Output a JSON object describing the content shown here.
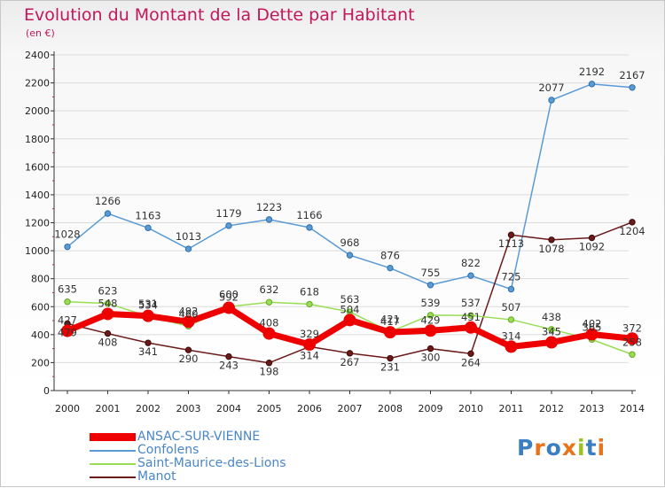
{
  "header": {
    "title": "Evolution du Montant de la Dette par Habitant",
    "subtitle": "(en €)"
  },
  "logo": {
    "text": "Proxiti",
    "colors": [
      "#3a7fc1",
      "#e8731a",
      "#3a7fc1",
      "#e8731a",
      "#9ac31c",
      "#3a7fc1",
      "#e8731a"
    ]
  },
  "chart_data": {
    "type": "line",
    "title": "Evolution du Montant de la Dette par Habitant",
    "subtitle": "(en €)",
    "xlabel": "",
    "ylabel": "",
    "ylim": [
      0,
      2400
    ],
    "yticks": [
      0,
      200,
      400,
      600,
      800,
      1000,
      1200,
      1400,
      1600,
      1800,
      2000,
      2200,
      2400
    ],
    "categories": [
      "2000",
      "2001",
      "2002",
      "2003",
      "2004",
      "2005",
      "2006",
      "2007",
      "2008",
      "2009",
      "2010",
      "2011",
      "2012",
      "2013",
      "2014"
    ],
    "legend_position": "bottom-left",
    "series": [
      {
        "name": "ANSAC-SUR-VIENNE",
        "color": "#ee0000",
        "values": [
          427,
          548,
          534,
          492,
          592,
          408,
          329,
          504,
          417,
          429,
          451,
          314,
          345,
          402,
          372
        ]
      },
      {
        "name": "Confolens",
        "color": "#5b9bd5",
        "values": [
          1028,
          1266,
          1163,
          1013,
          1179,
          1223,
          1166,
          968,
          876,
          755,
          822,
          725,
          2077,
          2192,
          2167
        ]
      },
      {
        "name": "Saint-Maurice-des-Lions",
        "color": "#99dd55",
        "values": [
          635,
          623,
          531,
          460,
          600,
          632,
          618,
          563,
          421,
          539,
          537,
          507,
          438,
          365,
          258
        ]
      },
      {
        "name": "Manot",
        "color": "#6b1a1a",
        "values": [
          479,
          408,
          341,
          290,
          243,
          198,
          314,
          267,
          231,
          300,
          264,
          1113,
          1078,
          1092,
          1204
        ]
      }
    ],
    "data_labels": {
      "ANSAC-SUR-VIENNE": [
        "427",
        "548",
        "534",
        "492",
        "592",
        "408",
        "329",
        "504",
        "417",
        "429",
        "451",
        "314",
        "345",
        "402",
        "372"
      ],
      "Confolens": [
        "1028",
        "1266",
        "1163",
        "1013",
        "1179",
        "1223",
        "1166",
        "968",
        "876",
        "755",
        "822",
        "725",
        "2077",
        "2192",
        "2167"
      ],
      "Saint-Maurice-des-Lions": [
        "635",
        "623",
        "531",
        "460",
        "600",
        "632",
        "618",
        "563",
        "421",
        "539",
        "537",
        "507",
        "438",
        "365",
        "258"
      ],
      "Manot": [
        "479",
        "408",
        "341",
        "290",
        "243",
        "198",
        "314",
        "267",
        "231",
        "300",
        "264",
        "1113",
        "1078",
        "1092",
        "1204"
      ]
    }
  }
}
